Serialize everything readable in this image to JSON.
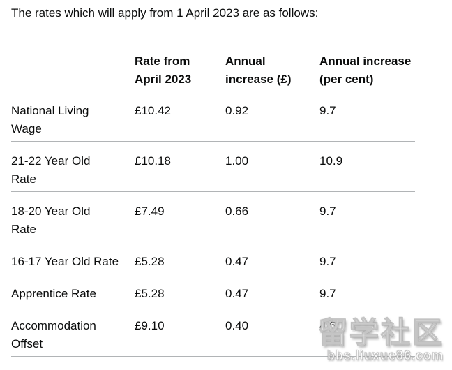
{
  "intro": "The rates which will apply from 1 April 2023 are as follows:",
  "table": {
    "col_headers": {
      "label": "",
      "rate": "Rate from\nApril 2023",
      "increase_gbp": "Annual\nincrease (£)",
      "increase_pct": "Annual increase\n(per cent)"
    },
    "rows": [
      {
        "label": "National Living\nWage",
        "rate": "£10.42",
        "increase_gbp": "0.92",
        "increase_pct": "9.7"
      },
      {
        "label": "21-22 Year Old\nRate",
        "rate": "£10.18",
        "increase_gbp": "1.00",
        "increase_pct": "10.9"
      },
      {
        "label": "18-20 Year Old\nRate",
        "rate": "£7.49",
        "increase_gbp": "0.66",
        "increase_pct": "9.7"
      },
      {
        "label": "16-17 Year Old Rate",
        "rate": "£5.28",
        "increase_gbp": "0.47",
        "increase_pct": "9.7"
      },
      {
        "label": "Apprentice Rate",
        "rate": "£5.28",
        "increase_gbp": "0.47",
        "increase_pct": "9.7"
      },
      {
        "label": "Accommodation\nOffset",
        "rate": "£9.10",
        "increase_gbp": "0.40",
        "increase_pct": "4.6"
      }
    ]
  },
  "watermark": {
    "text": "留学社区",
    "url": "bbs.liuxue86.com"
  },
  "colors": {
    "text": "#0b0c0c",
    "divider": "#b1b4b6",
    "background": "#ffffff",
    "watermark": "#ffffff"
  }
}
